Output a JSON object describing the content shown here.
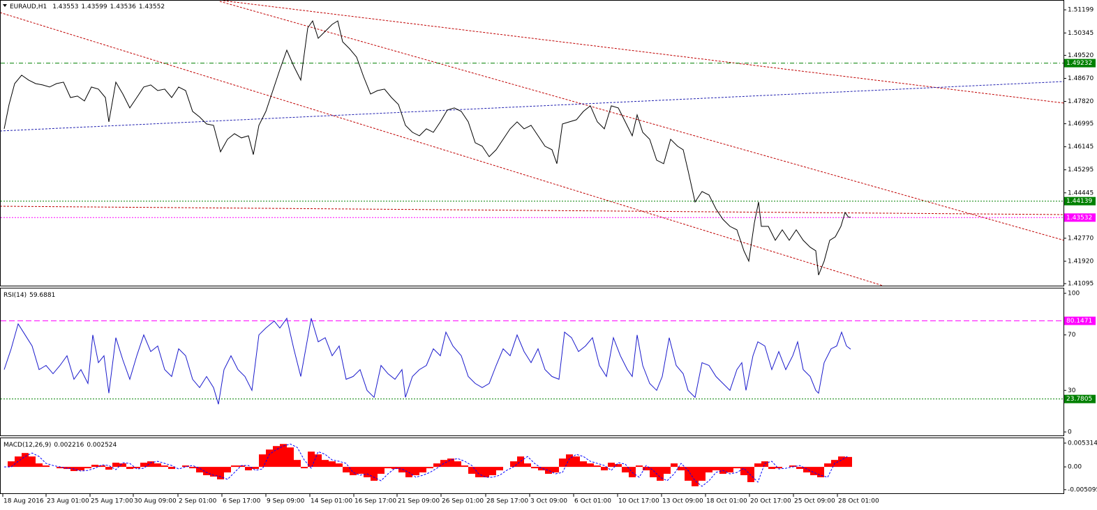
{
  "chart_data": [
    {
      "type": "line",
      "title": "EURAUD,H1",
      "ohlc": [
        1.43553,
        1.43599,
        1.43536,
        1.43552
      ],
      "color": "#000000",
      "xlim": [
        0,
        1522
      ],
      "ylim": [
        1.4102,
        1.5151
      ],
      "yticks": [
        1.51199,
        1.50345,
        {
          "value": 1.4952,
          "label": "1.49520"
        },
        {
          "value": 1.4867,
          "label": "1.48670"
        },
        {
          "value": 1.4782,
          "label": "1.47820"
        },
        1.46995,
        1.46145,
        1.45295,
        1.44445,
        {
          "value": 1.4277,
          "label": "1.42770"
        },
        {
          "value": 1.4192,
          "label": "1.41920"
        },
        1.41095
      ],
      "levels": [
        {
          "value": 1.49232,
          "color": "#008000",
          "style": "dashdot"
        },
        {
          "value": 1.44139,
          "color": "#008000",
          "style": "dotted"
        },
        {
          "value": 1.43532,
          "color": "#ff00ff",
          "style": "dotted"
        }
      ],
      "x": [
        5,
        12,
        20,
        30,
        40,
        50,
        60,
        70,
        80,
        90,
        100,
        110,
        120,
        130,
        140,
        150,
        155,
        165,
        175,
        185,
        195,
        205,
        215,
        225,
        235,
        245,
        255,
        265,
        275,
        285,
        295,
        305,
        315,
        325,
        335,
        345,
        355,
        362,
        370,
        380,
        390,
        400,
        410,
        420,
        430,
        440,
        447,
        455,
        465,
        475,
        483,
        490,
        500,
        510,
        520,
        530,
        540,
        550,
        560,
        570,
        580,
        590,
        600,
        610,
        620,
        630,
        640,
        650,
        660,
        670,
        680,
        690,
        700,
        710,
        720,
        730,
        740,
        750,
        760,
        770,
        780,
        790,
        797,
        805,
        815,
        825,
        835,
        845,
        855,
        865,
        875,
        885,
        895,
        905,
        912,
        920,
        930,
        940,
        950,
        960,
        970,
        978,
        985,
        995,
        1005,
        1015,
        1025,
        1035,
        1045,
        1055,
        1065,
        1072,
        1080,
        1086,
        1090,
        1100,
        1110,
        1120,
        1130,
        1140,
        1150,
        1160,
        1168,
        1172,
        1180,
        1188,
        1196,
        1204,
        1210,
        1215,
        1218
      ],
      "values": [
        1.46807,
        1.47706,
        1.48477,
        1.48786,
        1.48606,
        1.48477,
        1.48426,
        1.48349,
        1.48477,
        1.48529,
        1.47963,
        1.48015,
        1.47835,
        1.48349,
        1.48272,
        1.47963,
        1.47064,
        1.48529,
        1.48092,
        1.47578,
        1.47963,
        1.48349,
        1.48426,
        1.4822,
        1.48272,
        1.47963,
        1.48349,
        1.4822,
        1.47449,
        1.47244,
        1.46987,
        1.46935,
        1.45959,
        1.46421,
        1.46627,
        1.46473,
        1.4655,
        1.45856,
        1.46935,
        1.47449,
        1.4822,
        1.48991,
        1.49711,
        1.4912,
        1.48606,
        1.50533,
        1.5079,
        1.50148,
        1.50405,
        1.50662,
        1.5079,
        1.50019,
        1.49762,
        1.49454,
        1.48734,
        1.48092,
        1.4822,
        1.48272,
        1.47963,
        1.47706,
        1.46935,
        1.46678,
        1.4655,
        1.46807,
        1.46678,
        1.47064,
        1.47501,
        1.47578,
        1.47449,
        1.47064,
        1.46293,
        1.46164,
        1.45779,
        1.46036,
        1.46421,
        1.46807,
        1.47064,
        1.46807,
        1.46935,
        1.4655,
        1.46164,
        1.46036,
        1.45522,
        1.46987,
        1.47064,
        1.47141,
        1.47449,
        1.47655,
        1.47064,
        1.46807,
        1.47655,
        1.47578,
        1.47064,
        1.4655,
        1.47321,
        1.46678,
        1.46421,
        1.4565,
        1.45522,
        1.46421,
        1.46164,
        1.46036,
        1.45265,
        1.44108,
        1.44494,
        1.44365,
        1.43851,
        1.43466,
        1.43209,
        1.4308,
        1.42309,
        1.41924,
        1.43337,
        1.44108,
        1.43209,
        1.43209,
        1.42695,
        1.4308,
        1.42695,
        1.4308,
        1.42695,
        1.42438,
        1.42309,
        1.4141,
        1.41924,
        1.42695,
        1.42823,
        1.43209,
        1.43723,
        1.43543,
        1.43552
      ]
    },
    {
      "type": "line",
      "title": "RSI(14)",
      "current": 59.6881,
      "color": "#1a1acc",
      "xlim": [
        0,
        1522
      ],
      "ylim": [
        0,
        100
      ],
      "yticks": [
        100,
        70,
        30,
        0
      ],
      "levels": [
        {
          "value": 80.1471,
          "color": "#ff00ff",
          "style": "dashed"
        },
        {
          "value": 23.7805,
          "color": "#008000",
          "style": "dotted"
        }
      ],
      "x": [
        5,
        15,
        25,
        35,
        45,
        55,
        65,
        75,
        85,
        95,
        105,
        115,
        125,
        132,
        140,
        148,
        155,
        165,
        175,
        185,
        195,
        205,
        215,
        225,
        235,
        245,
        255,
        265,
        275,
        285,
        295,
        305,
        312,
        320,
        330,
        340,
        350,
        360,
        370,
        380,
        392,
        400,
        410,
        420,
        430,
        445,
        455,
        465,
        475,
        485,
        495,
        505,
        515,
        525,
        535,
        545,
        555,
        565,
        575,
        580,
        590,
        600,
        610,
        620,
        630,
        638,
        648,
        660,
        670,
        680,
        690,
        700,
        710,
        720,
        730,
        740,
        750,
        760,
        770,
        780,
        790,
        800,
        808,
        818,
        828,
        838,
        848,
        858,
        868,
        878,
        888,
        898,
        905,
        912,
        920,
        930,
        940,
        948,
        958,
        968,
        978,
        985,
        995,
        1005,
        1015,
        1025,
        1035,
        1045,
        1055,
        1062,
        1068,
        1078,
        1085,
        1095,
        1105,
        1115,
        1125,
        1135,
        1142,
        1150,
        1160,
        1168,
        1172,
        1180,
        1190,
        1198,
        1205,
        1212,
        1218
      ],
      "values": [
        45,
        60,
        78,
        70,
        62,
        45,
        48,
        42,
        48,
        55,
        38,
        45,
        35,
        70,
        50,
        55,
        28,
        68,
        52,
        38,
        55,
        70,
        58,
        62,
        45,
        40,
        60,
        55,
        38,
        32,
        40,
        32,
        20,
        45,
        55,
        45,
        40,
        30,
        70,
        75,
        80,
        75,
        82,
        60,
        40,
        82,
        65,
        68,
        55,
        62,
        38,
        40,
        45,
        30,
        25,
        48,
        42,
        38,
        45,
        25,
        40,
        45,
        48,
        60,
        55,
        72,
        62,
        55,
        40,
        35,
        32,
        35,
        48,
        60,
        55,
        70,
        58,
        50,
        60,
        45,
        40,
        38,
        72,
        68,
        58,
        62,
        68,
        48,
        40,
        68,
        55,
        45,
        40,
        70,
        48,
        35,
        30,
        40,
        68,
        48,
        42,
        30,
        25,
        50,
        48,
        40,
        35,
        30,
        45,
        50,
        30,
        55,
        65,
        62,
        45,
        58,
        45,
        55,
        65,
        45,
        40,
        30,
        28,
        50,
        60,
        62,
        72,
        62,
        59.6881
      ]
    },
    {
      "type": "bar",
      "title": "MACD(12,26,9)",
      "current": [
        0.002216,
        0.002524
      ],
      "xlim": [
        0,
        1522
      ],
      "ylim": [
        -0.0059,
        0.0064
      ],
      "yticks": [
        0.005314,
        {
          "value": 0,
          "label": "0.00"
        },
        -0.005095
      ],
      "xticks": [
        {
          "value": 3,
          "label": "18 Aug 2016"
        },
        {
          "value": 65,
          "label": "23 Aug 01:00"
        },
        {
          "value": 128,
          "label": "25 Aug 17:00"
        },
        {
          "value": 190,
          "label": "30 Aug 09:00"
        },
        {
          "value": 254,
          "label": "2 Sep 01:00"
        },
        {
          "value": 317,
          "label": "6 Sep 17:00"
        },
        {
          "value": 380,
          "label": "9 Sep 09:00"
        },
        {
          "value": 443,
          "label": "14 Sep 01:00"
        },
        {
          "value": 506,
          "label": "16 Sep 17:00"
        },
        {
          "value": 568,
          "label": "21 Sep 09:00"
        },
        {
          "value": 631,
          "label": "26 Sep 01:00"
        },
        {
          "value": 695,
          "label": "28 Sep 17:00"
        },
        {
          "value": 758,
          "label": "3 Oct 09:00"
        },
        {
          "value": 821,
          "label": "6 Oct 01:00"
        },
        {
          "value": 884,
          "label": "10 Oct 17:00"
        },
        {
          "value": 947,
          "label": "13 Oct 09:00"
        },
        {
          "value": 1010,
          "label": "18 Oct 01:00"
        },
        {
          "value": 1073,
          "label": "20 Oct 17:00"
        },
        {
          "value": 1136,
          "label": "25 Oct 09:00"
        },
        {
          "value": 1199,
          "label": "28 Oct 01:00"
        }
      ],
      "x": [
        5,
        15,
        25,
        35,
        45,
        55,
        65,
        75,
        85,
        95,
        105,
        115,
        125,
        135,
        145,
        155,
        165,
        175,
        185,
        195,
        205,
        215,
        225,
        235,
        245,
        255,
        265,
        275,
        285,
        295,
        305,
        315,
        325,
        335,
        345,
        355,
        365,
        375,
        385,
        395,
        405,
        415,
        425,
        435,
        445,
        455,
        465,
        475,
        485,
        495,
        505,
        515,
        525,
        535,
        545,
        555,
        565,
        575,
        585,
        595,
        605,
        615,
        625,
        635,
        645,
        655,
        665,
        675,
        685,
        695,
        705,
        715,
        725,
        735,
        745,
        755,
        765,
        775,
        785,
        795,
        805,
        815,
        825,
        835,
        845,
        855,
        865,
        875,
        885,
        895,
        905,
        915,
        925,
        935,
        945,
        955,
        965,
        975,
        985,
        995,
        1005,
        1015,
        1025,
        1035,
        1045,
        1055,
        1065,
        1075,
        1085,
        1095,
        1105,
        1115,
        1125,
        1135,
        1145,
        1155,
        1165,
        1175,
        1185,
        1195,
        1205,
        1215
      ],
      "series": [
        {
          "type": "bar",
          "color": "#ff0000",
          "values": [
            0,
            0.00124,
            0.002325,
            0.0031,
            0.002325,
            0.000775,
            0.00031,
            0,
            -0.00031,
            -0.000465,
            -0.00093,
            -0.000775,
            -0.00031,
            0.000465,
            0.00031,
            -0.00062,
            0.00093,
            0.000775,
            -0.000465,
            -0.00031,
            0.00093,
            0.00124,
            0.000775,
            0.00031,
            -0.000465,
            0,
            0.00031,
            -0.00031,
            -0.00124,
            -0.00186,
            -0.00217,
            -0.00279,
            -0.00124,
            0.00031,
            0.00031,
            -0.000775,
            -0.000465,
            0.00279,
            0.003875,
            0.00465,
            0.005115,
            0.00434,
            0.00155,
            -0.00031,
            0.00341,
            0.00279,
            0.00155,
            0.00124,
            0.000775,
            -0.00124,
            -0.00186,
            -0.00155,
            -0.002325,
            -0.0031,
            -0.00155,
            -0.00031,
            -0.000465,
            -0.00124,
            -0.002325,
            -0.00186,
            -0.00124,
            -0.00031,
            0.000775,
            0.00155,
            0.00186,
            0.00124,
            0.00031,
            -0.00155,
            -0.002325,
            -0.002325,
            -0.00186,
            -0.000775,
            0,
            0.00124,
            0.002325,
            0.000775,
            -0.00031,
            -0.000775,
            -0.00155,
            -0.00124,
            0.00186,
            0.00279,
            0.002325,
            0.00124,
            0.000775,
            0.00031,
            -0.000775,
            0.00093,
            0.00062,
            -0.00124,
            -0.002325,
            0.00031,
            -0.000775,
            -0.002325,
            -0.0031,
            -0.00155,
            0.000775,
            -0.000775,
            -0.0031,
            -0.00434,
            -0.0031,
            -0.00124,
            -0.000775,
            -0.00155,
            -0.00124,
            -0.00031,
            -0.00186,
            -0.00341,
            0.000775,
            0.00124,
            -0.000465,
            -0.00031,
            0,
            0.00031,
            -0.000465,
            -0.00124,
            -0.00186,
            -0.002325,
            0.000775,
            0.00155,
            0.002325,
            0.002216
          ]
        },
        {
          "type": "line",
          "color": "#0000ff",
          "values": [
            0,
            0,
            0.00124,
            0.002325,
            0.0031,
            0.002325,
            0.000775,
            0.00031,
            0,
            -0.00031,
            -0.000465,
            -0.00093,
            -0.000775,
            -0.00031,
            0.000465,
            0.00031,
            -0.00062,
            0.00093,
            0.000775,
            -0.000465,
            -0.00031,
            0.00093,
            0.00124,
            0.000775,
            0.00031,
            -0.000465,
            0,
            0.00031,
            -0.00031,
            -0.00124,
            -0.00186,
            -0.00217,
            -0.00279,
            -0.00124,
            0.00031,
            0.00031,
            -0.000775,
            -0.000465,
            0.00279,
            0.003875,
            0.00465,
            0.005115,
            0.00434,
            0.00155,
            -0.00031,
            0.00341,
            0.00279,
            0.00155,
            0.00124,
            0.000775,
            -0.00124,
            -0.00186,
            -0.00155,
            -0.002325,
            -0.0031,
            -0.00155,
            -0.00031,
            -0.000465,
            -0.00124,
            -0.002325,
            -0.00186,
            -0.00124,
            -0.00031,
            0.000775,
            0.00155,
            0.00186,
            0.00124,
            0.00031,
            -0.00155,
            -0.002325,
            -0.002325,
            -0.00186,
            -0.000775,
            0,
            0.00124,
            0.002325,
            0.000775,
            -0.00031,
            -0.000775,
            -0.00155,
            -0.00124,
            0.00186,
            0.00279,
            0.002325,
            0.00124,
            0.000775,
            0.00031,
            -0.000775,
            0.00093,
            0.00062,
            -0.00124,
            -0.002325,
            0.00031,
            -0.000775,
            -0.002325,
            -0.0031,
            -0.00155,
            0.000775,
            -0.000775,
            -0.0031,
            -0.00434,
            -0.0031,
            -0.00124,
            -0.000775,
            -0.00155,
            -0.00124,
            -0.00031,
            -0.00186,
            -0.00341,
            0.000775,
            0.00124,
            -0.000465,
            -0.00031,
            0,
            0.00031,
            -0.000465,
            -0.00124,
            -0.00186,
            -0.002325,
            0.000775,
            0.00155,
            0.002524
          ]
        }
      ]
    }
  ]
}
